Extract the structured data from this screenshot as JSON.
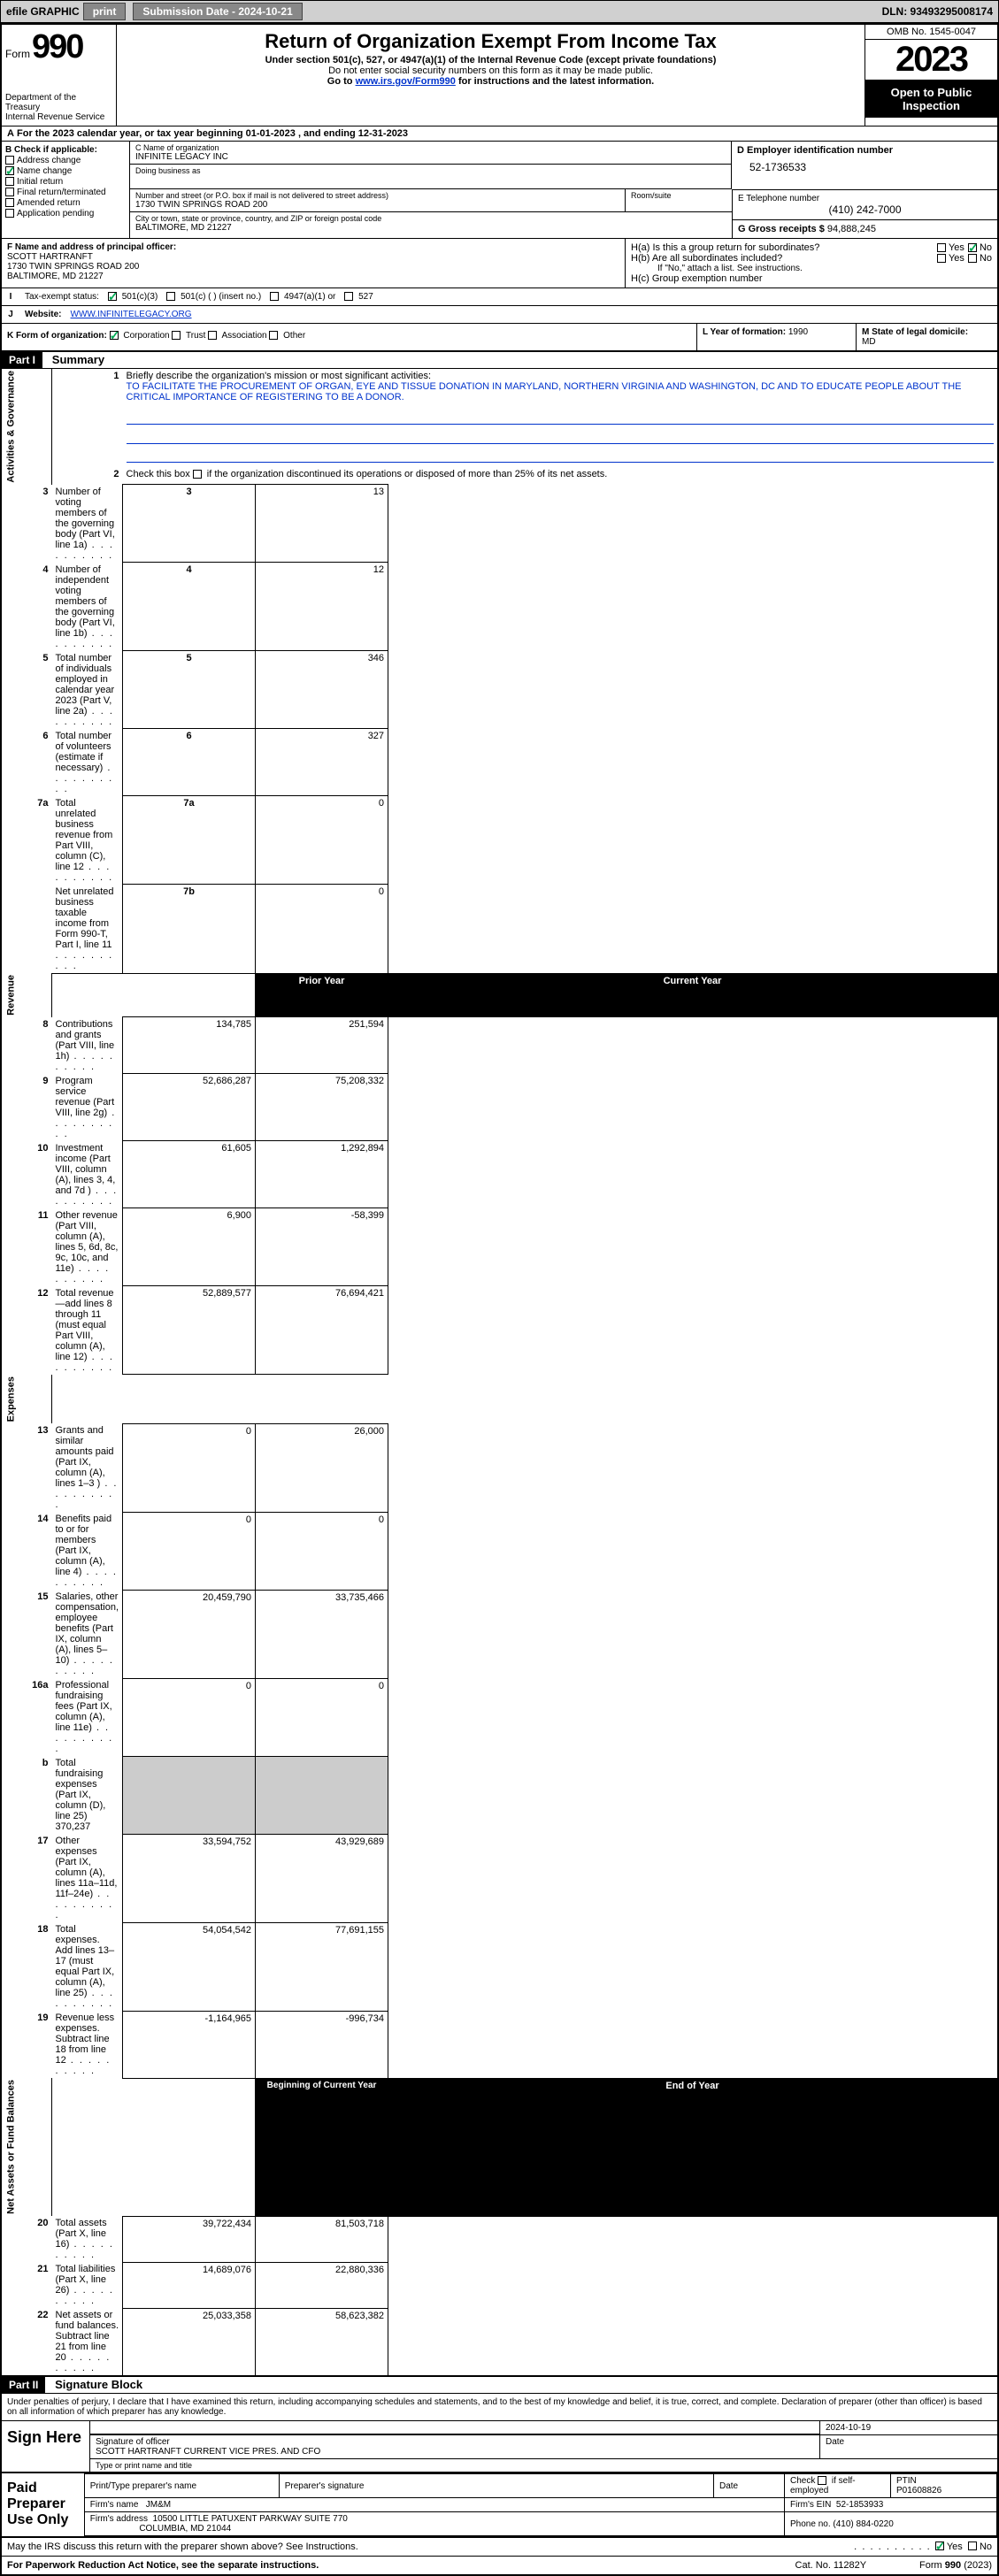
{
  "topbar": {
    "efile": "efile GRAPHIC",
    "print": "print",
    "sub_date_label": "Submission Date - 2024-10-21",
    "dln": "DLN: 93493295008174"
  },
  "header": {
    "form_word": "Form",
    "form_no": "990",
    "title": "Return of Organization Exempt From Income Tax",
    "sub1": "Under section 501(c), 527, or 4947(a)(1) of the Internal Revenue Code (except private foundations)",
    "sub2": "Do not enter social security numbers on this form as it may be made public.",
    "sub3_pre": "Go to ",
    "sub3_link": "www.irs.gov/Form990",
    "sub3_post": " for instructions and the latest information.",
    "dept": "Department of the Treasury",
    "irs": "Internal Revenue Service",
    "omb": "OMB No. 1545-0047",
    "year": "2023",
    "open": "Open to Public Inspection"
  },
  "rowA": {
    "label": "A",
    "text": "For the 2023 calendar year, or tax year beginning 01-01-2023   , and ending 12-31-2023"
  },
  "colB": {
    "label": "B Check if applicable:",
    "addr_change": "Address change",
    "name_change": "Name change",
    "initial": "Initial return",
    "final": "Final return/terminated",
    "amended": "Amended return",
    "app_pending": "Application pending",
    "name_change_checked": true
  },
  "blockC": {
    "c_label": "C Name of organization",
    "org_name": "INFINITE LEGACY INC",
    "dba": "Doing business as",
    "street_label": "Number and street (or P.O. box if mail is not delivered to street address)",
    "street": "1730 TWIN SPRINGS ROAD 200",
    "room_label": "Room/suite",
    "city_label": "City or town, state or province, country, and ZIP or foreign postal code",
    "city": "BALTIMORE, MD  21227"
  },
  "blockD": {
    "d_label": "D Employer identification number",
    "ein": "52-1736533",
    "e_label": "E Telephone number",
    "phone": "(410) 242-7000",
    "g_label": "G Gross receipts $",
    "gross": "94,888,245"
  },
  "blockF": {
    "label": "F  Name and address of principal officer:",
    "name": "SCOTT HARTRANFT",
    "addr1": "1730 TWIN SPRINGS ROAD 200",
    "addr2": "BALTIMORE, MD  21227"
  },
  "blockH": {
    "ha": "H(a)  Is this a group return for subordinates?",
    "hb": "H(b)  Are all subordinates included?",
    "hb_note": "If \"No,\" attach a list. See instructions.",
    "hc": "H(c)  Group exemption number",
    "yes": "Yes",
    "no": "No",
    "ha_no_checked": true
  },
  "rowI": {
    "label": "I",
    "text": "Tax-exempt status:",
    "c3": "501(c)(3)",
    "c_other": "501(c) (  ) (insert no.)",
    "t4947": "4947(a)(1) or",
    "t527": "527",
    "c3_checked": true
  },
  "rowJ": {
    "label": "J",
    "text": "Website:",
    "site": "WWW.INFINITELEGACY.ORG"
  },
  "rowK": {
    "label": "K Form of organization:",
    "corp": "Corporation",
    "trust": "Trust",
    "assoc": "Association",
    "other": "Other",
    "corp_checked": true
  },
  "rowL": {
    "label": "L Year of formation:",
    "val": "1990"
  },
  "rowM": {
    "label": "M State of legal domicile:",
    "val": "MD"
  },
  "part1": {
    "header": "Part I",
    "title": "Summary",
    "side_ag": "Activities & Governance",
    "side_rev": "Revenue",
    "side_exp": "Expenses",
    "side_net": "Net Assets or Fund Balances",
    "q1": "Briefly describe the organization's mission or most significant activities:",
    "mission": "TO FACILITATE THE PROCUREMENT OF ORGAN, EYE AND TISSUE DONATION IN MARYLAND, NORTHERN VIRGINIA AND WASHINGTON, DC AND TO EDUCATE PEOPLE ABOUT THE CRITICAL IMPORTANCE OF REGISTERING TO BE A DONOR.",
    "q2": "Check this box     if the organization discontinued its operations or disposed of more than 25% of its net assets.",
    "lines_ag": [
      {
        "n": "3",
        "d": "Number of voting members of the governing body (Part VI, line 1a)",
        "k": "3",
        "v": "13"
      },
      {
        "n": "4",
        "d": "Number of independent voting members of the governing body (Part VI, line 1b)",
        "k": "4",
        "v": "12"
      },
      {
        "n": "5",
        "d": "Total number of individuals employed in calendar year 2023 (Part V, line 2a)",
        "k": "5",
        "v": "346"
      },
      {
        "n": "6",
        "d": "Total number of volunteers (estimate if necessary)",
        "k": "6",
        "v": "327"
      },
      {
        "n": "7a",
        "d": "Total unrelated business revenue from Part VIII, column (C), line 12",
        "k": "7a",
        "v": "0"
      },
      {
        "n": "",
        "d": "Net unrelated business taxable income from Form 990-T, Part I, line 11",
        "k": "7b",
        "v": "0"
      }
    ],
    "prior_head": "Prior Year",
    "curr_head": "Current Year",
    "lines_rev": [
      {
        "n": "8",
        "d": "Contributions and grants (Part VIII, line 1h)",
        "p": "134,785",
        "c": "251,594"
      },
      {
        "n": "9",
        "d": "Program service revenue (Part VIII, line 2g)",
        "p": "52,686,287",
        "c": "75,208,332"
      },
      {
        "n": "10",
        "d": "Investment income (Part VIII, column (A), lines 3, 4, and 7d )",
        "p": "61,605",
        "c": "1,292,894"
      },
      {
        "n": "11",
        "d": "Other revenue (Part VIII, column (A), lines 5, 6d, 8c, 9c, 10c, and 11e)",
        "p": "6,900",
        "c": "-58,399"
      },
      {
        "n": "12",
        "d": "Total revenue—add lines 8 through 11 (must equal Part VIII, column (A), line 12)",
        "p": "52,889,577",
        "c": "76,694,421"
      }
    ],
    "lines_exp": [
      {
        "n": "13",
        "d": "Grants and similar amounts paid (Part IX, column (A), lines 1–3 )",
        "p": "0",
        "c": "26,000"
      },
      {
        "n": "14",
        "d": "Benefits paid to or for members (Part IX, column (A), line 4)",
        "p": "0",
        "c": "0"
      },
      {
        "n": "15",
        "d": "Salaries, other compensation, employee benefits (Part IX, column (A), lines 5–10)",
        "p": "20,459,790",
        "c": "33,735,466"
      },
      {
        "n": "16a",
        "d": "Professional fundraising fees (Part IX, column (A), line 11e)",
        "p": "0",
        "c": "0"
      },
      {
        "n": "b",
        "d": "Total fundraising expenses (Part IX, column (D), line 25) 370,237",
        "p": "grey",
        "c": "grey"
      },
      {
        "n": "17",
        "d": "Other expenses (Part IX, column (A), lines 11a–11d, 11f–24e)",
        "p": "33,594,752",
        "c": "43,929,689"
      },
      {
        "n": "18",
        "d": "Total expenses. Add lines 13–17 (must equal Part IX, column (A), line 25)",
        "p": "54,054,542",
        "c": "77,691,155"
      },
      {
        "n": "19",
        "d": "Revenue less expenses. Subtract line 18 from line 12",
        "p": "-1,164,965",
        "c": "-996,734"
      }
    ],
    "beg_head": "Beginning of Current Year",
    "end_head": "End of Year",
    "lines_net": [
      {
        "n": "20",
        "d": "Total assets (Part X, line 16)",
        "p": "39,722,434",
        "c": "81,503,718"
      },
      {
        "n": "21",
        "d": "Total liabilities (Part X, line 26)",
        "p": "14,689,076",
        "c": "22,880,336"
      },
      {
        "n": "22",
        "d": "Net assets or fund balances. Subtract line 21 from line 20",
        "p": "25,033,358",
        "c": "58,623,382"
      }
    ]
  },
  "part2": {
    "header": "Part II",
    "title": "Signature Block",
    "penalties": "Under penalties of perjury, I declare that I have examined this return, including accompanying schedules and statements, and to the best of my knowledge and belief, it is true, correct, and complete. Declaration of preparer (other than officer) is based on all information of which preparer has any knowledge.",
    "sign_here": "Sign Here",
    "sig_officer": "Signature of officer",
    "officer_name": "SCOTT HARTRANFT  CURRENT VICE PRES. AND CFO",
    "type_name": "Type or print name and title",
    "date": "2024-10-19",
    "date_label": "Date",
    "paid": "Paid Preparer Use Only",
    "pt_name_label": "Print/Type preparer's name",
    "pt_sig_label": "Preparer's signature",
    "pt_date_label": "Date",
    "check_self": "Check       if self-employed",
    "ptin_label": "PTIN",
    "ptin": "P01608826",
    "firm_name_label": "Firm's name",
    "firm_name": "JM&M",
    "firm_ein_label": "Firm's EIN",
    "firm_ein": "52-1853933",
    "firm_addr_label": "Firm's address",
    "firm_addr1": "10500 LITTLE PATUXENT PARKWAY SUITE 770",
    "firm_addr2": "COLUMBIA, MD  21044",
    "phone_label": "Phone no.",
    "phone": "(410) 884-0220",
    "discuss": "May the IRS discuss this return with the preparer shown above? See Instructions.",
    "yes": "Yes",
    "no": "No",
    "discuss_yes_checked": true
  },
  "footer": {
    "left": "For Paperwork Reduction Act Notice, see the separate instructions.",
    "mid": "Cat. No. 11282Y",
    "right": "Form 990 (2023)"
  }
}
